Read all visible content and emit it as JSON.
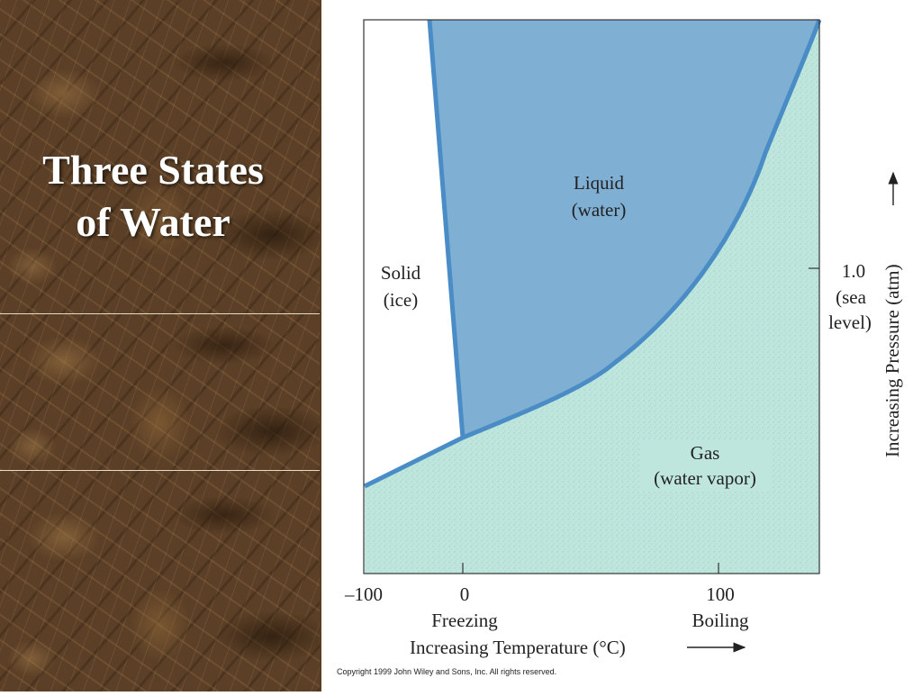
{
  "slide": {
    "title": "Three States\nof Water"
  },
  "diagram": {
    "regions": {
      "solid": [
        "Solid",
        "(ice)"
      ],
      "liquid": [
        "Liquid",
        "(water)"
      ],
      "gas": [
        "Gas",
        "(water vapor)"
      ]
    },
    "x_ticks": [
      {
        "value": -100,
        "label": "–100",
        "sublabel": ""
      },
      {
        "value": 0,
        "label": "0",
        "sublabel": "Freezing"
      },
      {
        "value": 100,
        "label": "100",
        "sublabel": "Boiling"
      }
    ],
    "x_axis_label": "Increasing Temperature (°C)",
    "y_axis_label": "Increasing Pressure (atm)",
    "y_tick": [
      "1.0",
      "(sea",
      "level)"
    ],
    "colors": {
      "liquid": "#80afd4",
      "gas": "#bfe6dd",
      "boundary": "#4a8cc6",
      "solid": "#ffffff"
    }
  },
  "copyright": "Copyright 1999 John Wiley and Sons, Inc. All rights reserved."
}
